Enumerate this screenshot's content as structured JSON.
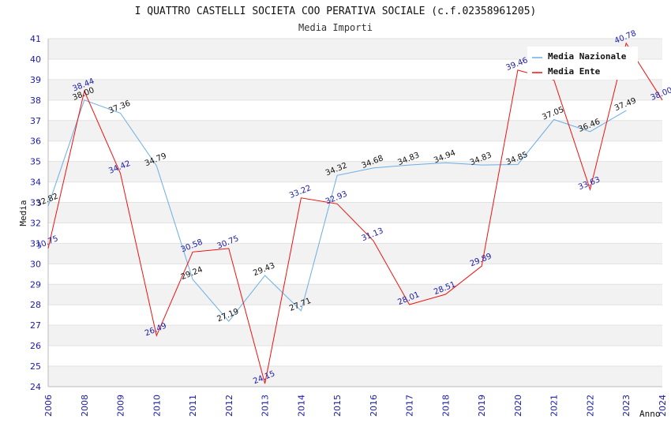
{
  "chart_data": {
    "type": "line",
    "title": "I QUATTRO CASTELLI SOCIETA COO PERATIVA SOCIALE (c.f.02358961205)",
    "subtitle": "Media Importi",
    "xlabel": "Anno",
    "ylabel": "Media",
    "ylim": [
      24,
      41
    ],
    "y_ticks": [
      24,
      25,
      26,
      27,
      28,
      29,
      30,
      31,
      32,
      33,
      34,
      35,
      36,
      37,
      38,
      39,
      40,
      41
    ],
    "categories": [
      "2006",
      "2008",
      "2009",
      "2010",
      "2011",
      "2012",
      "2013",
      "2014",
      "2015",
      "2016",
      "2017",
      "2018",
      "2019",
      "2020",
      "2021",
      "2022",
      "2023",
      "2024"
    ],
    "grid": "horizontal bands",
    "legend_position": "top-right",
    "series": [
      {
        "name": "Media Nazionale",
        "color": "#6aaee6",
        "values": [
          32.82,
          38.0,
          37.36,
          34.79,
          29.24,
          27.19,
          29.43,
          27.71,
          34.32,
          34.68,
          34.83,
          34.94,
          34.83,
          34.85,
          37.05,
          36.46,
          37.49,
          null
        ],
        "labels": [
          "32.82",
          "38.00",
          "37.36",
          "34.79",
          "29.24",
          "27.19",
          "29.43",
          "27.71",
          "34.32",
          "34.68",
          "34.83",
          "34.94",
          "34.83",
          "34.85",
          "37.05",
          "36.46",
          "37.49",
          ""
        ]
      },
      {
        "name": "Media Ente",
        "color": "#ee1111",
        "values": [
          30.75,
          38.44,
          34.42,
          26.49,
          30.58,
          30.75,
          24.15,
          33.22,
          32.93,
          31.13,
          28.01,
          28.51,
          29.89,
          39.46,
          38.98,
          33.63,
          40.78,
          38.0
        ],
        "labels": [
          "30.75",
          "38.44",
          "34.42",
          "26.49",
          "30.58",
          "30.75",
          "24.15",
          "33.22",
          "32.93",
          "31.13",
          "28.01",
          "28.51",
          "29.89",
          "39.46",
          "",
          "33.63",
          "40.78",
          "38.00"
        ]
      }
    ]
  }
}
